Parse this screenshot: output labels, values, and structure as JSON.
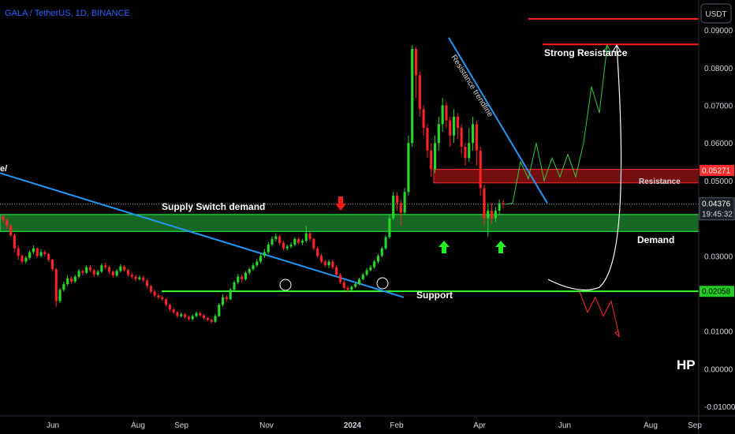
{
  "chart_data": {
    "type": "candlestick",
    "title": "GALA / TetherUS, 1D, BINANCE",
    "currency": "USDT",
    "ylim": [
      -0.0125,
      0.098
    ],
    "y_ticks": [
      "0.09000",
      "0.08000",
      "0.07000",
      "0.06000",
      "0.05000",
      "0.03000",
      "0.01000",
      "0.00000",
      "-0.01000"
    ],
    "x_ticks": [
      "Jun",
      "Aug",
      "Sep",
      "Nov",
      "2024",
      "Feb",
      "Apr",
      "Jun",
      "Aug",
      "Sep"
    ],
    "price_now": "0.04376",
    "countdown": "19:45:32",
    "resistance_price": "0.05271",
    "support_price": "0.02058",
    "zones": {
      "demand": {
        "from": 0.0365,
        "to": 0.041,
        "label": "Demand",
        "label2": "Supply Switch demand"
      },
      "resistance": {
        "from": 0.0494,
        "to": 0.053,
        "label": "Resistance"
      },
      "support": {
        "level": 0.0206,
        "label": "Support"
      },
      "strong_resistance": {
        "levels": [
          0.093,
          0.0862
        ],
        "label": "Strong Resistance"
      }
    },
    "trendline_label": "Resistance trendline",
    "left_label": "e/",
    "signature": "HP",
    "candles": [
      [
        0.0405,
        0.0395,
        0.041,
        0.0388
      ],
      [
        0.0395,
        0.038,
        0.04,
        0.0372
      ],
      [
        0.038,
        0.0355,
        0.0385,
        0.035
      ],
      [
        0.0355,
        0.032,
        0.036,
        0.031
      ],
      [
        0.032,
        0.03,
        0.0328,
        0.029
      ],
      [
        0.03,
        0.0285,
        0.0305,
        0.0278
      ],
      [
        0.0285,
        0.0295,
        0.03,
        0.028
      ],
      [
        0.0295,
        0.031,
        0.0315,
        0.029
      ],
      [
        0.031,
        0.032,
        0.0328,
        0.0305
      ],
      [
        0.032,
        0.03,
        0.0322,
        0.0295
      ],
      [
        0.03,
        0.031,
        0.0318,
        0.0296
      ],
      [
        0.031,
        0.0305,
        0.0315,
        0.0298
      ],
      [
        0.0305,
        0.029,
        0.0308,
        0.0284
      ],
      [
        0.029,
        0.0265,
        0.0292,
        0.026
      ],
      [
        0.0265,
        0.018,
        0.0268,
        0.0165
      ],
      [
        0.018,
        0.021,
        0.0215,
        0.0175
      ],
      [
        0.021,
        0.0225,
        0.0232,
        0.0205
      ],
      [
        0.0225,
        0.024,
        0.0248,
        0.022
      ],
      [
        0.024,
        0.0232,
        0.0246,
        0.0226
      ],
      [
        0.0232,
        0.0245,
        0.025,
        0.0228
      ],
      [
        0.0245,
        0.026,
        0.0265,
        0.024
      ],
      [
        0.026,
        0.0255,
        0.0264,
        0.0248
      ],
      [
        0.0255,
        0.027,
        0.0275,
        0.0252
      ],
      [
        0.027,
        0.0262,
        0.0276,
        0.0256
      ],
      [
        0.0262,
        0.025,
        0.0265,
        0.0244
      ],
      [
        0.025,
        0.0258,
        0.0263,
        0.0245
      ],
      [
        0.0258,
        0.0275,
        0.028,
        0.0254
      ],
      [
        0.0275,
        0.027,
        0.0282,
        0.0264
      ],
      [
        0.027,
        0.0258,
        0.0274,
        0.0252
      ],
      [
        0.0258,
        0.0248,
        0.0262,
        0.0242
      ],
      [
        0.0248,
        0.026,
        0.0265,
        0.0244
      ],
      [
        0.026,
        0.0272,
        0.0278,
        0.0256
      ],
      [
        0.0272,
        0.0262,
        0.0276,
        0.0258
      ],
      [
        0.0262,
        0.025,
        0.0266,
        0.0245
      ],
      [
        0.025,
        0.0245,
        0.0255,
        0.024
      ],
      [
        0.0245,
        0.0238,
        0.025,
        0.0232
      ],
      [
        0.0238,
        0.0243,
        0.0248,
        0.0234
      ],
      [
        0.0243,
        0.0235,
        0.0247,
        0.023
      ],
      [
        0.0235,
        0.022,
        0.0238,
        0.0215
      ],
      [
        0.022,
        0.0205,
        0.0223,
        0.02
      ],
      [
        0.0205,
        0.0195,
        0.021,
        0.019
      ],
      [
        0.0195,
        0.019,
        0.02,
        0.0185
      ],
      [
        0.019,
        0.0185,
        0.0195,
        0.018
      ],
      [
        0.0185,
        0.017,
        0.0188,
        0.0165
      ],
      [
        0.017,
        0.0158,
        0.0173,
        0.0152
      ],
      [
        0.0158,
        0.015,
        0.0162,
        0.0145
      ],
      [
        0.015,
        0.014,
        0.0154,
        0.0135
      ],
      [
        0.014,
        0.0145,
        0.015,
        0.0136
      ],
      [
        0.0145,
        0.0138,
        0.0148,
        0.0133
      ],
      [
        0.0138,
        0.0132,
        0.0142,
        0.0128
      ],
      [
        0.0132,
        0.014,
        0.0145,
        0.0128
      ],
      [
        0.014,
        0.0148,
        0.0152,
        0.0136
      ],
      [
        0.0148,
        0.0142,
        0.0152,
        0.0138
      ],
      [
        0.0142,
        0.0135,
        0.0146,
        0.013
      ],
      [
        0.0135,
        0.013,
        0.0138,
        0.0126
      ],
      [
        0.013,
        0.0125,
        0.0134,
        0.012
      ],
      [
        0.0125,
        0.014,
        0.0146,
        0.0122
      ],
      [
        0.014,
        0.017,
        0.0175,
        0.0138
      ],
      [
        0.017,
        0.019,
        0.0198,
        0.0165
      ],
      [
        0.019,
        0.0185,
        0.0196,
        0.0178
      ],
      [
        0.0185,
        0.021,
        0.0215,
        0.0182
      ],
      [
        0.021,
        0.023,
        0.0235,
        0.0205
      ],
      [
        0.023,
        0.0245,
        0.0252,
        0.0225
      ],
      [
        0.0245,
        0.0238,
        0.025,
        0.023
      ],
      [
        0.0238,
        0.0255,
        0.026,
        0.0234
      ],
      [
        0.0255,
        0.0265,
        0.027,
        0.025
      ],
      [
        0.0265,
        0.0275,
        0.0282,
        0.026
      ],
      [
        0.0275,
        0.0285,
        0.0292,
        0.027
      ],
      [
        0.0285,
        0.03,
        0.0308,
        0.028
      ],
      [
        0.03,
        0.031,
        0.0318,
        0.0295
      ],
      [
        0.031,
        0.033,
        0.0336,
        0.0305
      ],
      [
        0.033,
        0.0345,
        0.0352,
        0.0325
      ],
      [
        0.0345,
        0.0352,
        0.036,
        0.0338
      ],
      [
        0.0352,
        0.0335,
        0.0356,
        0.0328
      ],
      [
        0.0335,
        0.032,
        0.034,
        0.0315
      ],
      [
        0.032,
        0.0325,
        0.033,
        0.0314
      ],
      [
        0.0325,
        0.033,
        0.0336,
        0.032
      ],
      [
        0.033,
        0.0345,
        0.035,
        0.0325
      ],
      [
        0.0345,
        0.0335,
        0.035,
        0.033
      ],
      [
        0.0335,
        0.034,
        0.0345,
        0.0328
      ],
      [
        0.034,
        0.036,
        0.038,
        0.0335
      ],
      [
        0.036,
        0.0345,
        0.0365,
        0.0338
      ],
      [
        0.0345,
        0.032,
        0.0348,
        0.0315
      ],
      [
        0.032,
        0.03,
        0.0325,
        0.0295
      ],
      [
        0.03,
        0.0285,
        0.0305,
        0.028
      ],
      [
        0.0285,
        0.0275,
        0.029,
        0.027
      ],
      [
        0.0275,
        0.0285,
        0.029,
        0.0268
      ],
      [
        0.0285,
        0.027,
        0.029,
        0.0265
      ],
      [
        0.027,
        0.025,
        0.0275,
        0.0245
      ],
      [
        0.025,
        0.023,
        0.0255,
        0.0225
      ],
      [
        0.023,
        0.0215,
        0.0235,
        0.021
      ],
      [
        0.0215,
        0.021,
        0.022,
        0.0205
      ],
      [
        0.021,
        0.0218,
        0.0222,
        0.0206
      ],
      [
        0.0218,
        0.0225,
        0.023,
        0.0214
      ],
      [
        0.0225,
        0.0238,
        0.0242,
        0.0222
      ],
      [
        0.0238,
        0.025,
        0.0255,
        0.0235
      ],
      [
        0.025,
        0.0262,
        0.0268,
        0.0246
      ],
      [
        0.0262,
        0.027,
        0.0276,
        0.0258
      ],
      [
        0.027,
        0.0285,
        0.029,
        0.0266
      ],
      [
        0.0285,
        0.03,
        0.0305,
        0.028
      ],
      [
        0.03,
        0.032,
        0.0325,
        0.0296
      ],
      [
        0.032,
        0.035,
        0.0355,
        0.0316
      ],
      [
        0.035,
        0.04,
        0.041,
        0.0345
      ],
      [
        0.04,
        0.046,
        0.047,
        0.0395
      ],
      [
        0.046,
        0.044,
        0.047,
        0.042
      ],
      [
        0.044,
        0.0415,
        0.045,
        0.038
      ],
      [
        0.0415,
        0.047,
        0.048,
        0.041
      ],
      [
        0.047,
        0.06,
        0.062,
        0.046
      ],
      [
        0.06,
        0.085,
        0.086,
        0.059
      ],
      [
        0.085,
        0.078,
        0.0855,
        0.072
      ],
      [
        0.078,
        0.069,
        0.079,
        0.067
      ],
      [
        0.069,
        0.064,
        0.07,
        0.062
      ],
      [
        0.064,
        0.058,
        0.065,
        0.056
      ],
      [
        0.058,
        0.053,
        0.06,
        0.051
      ],
      [
        0.053,
        0.06,
        0.062,
        0.052
      ],
      [
        0.06,
        0.065,
        0.067,
        0.058
      ],
      [
        0.065,
        0.07,
        0.072,
        0.063
      ],
      [
        0.07,
        0.066,
        0.071,
        0.064
      ],
      [
        0.066,
        0.062,
        0.067,
        0.059
      ],
      [
        0.062,
        0.067,
        0.069,
        0.06
      ],
      [
        0.067,
        0.064,
        0.068,
        0.061
      ],
      [
        0.064,
        0.059,
        0.065,
        0.057
      ],
      [
        0.059,
        0.056,
        0.06,
        0.054
      ],
      [
        0.056,
        0.06,
        0.064,
        0.055
      ],
      [
        0.06,
        0.065,
        0.067,
        0.058
      ],
      [
        0.065,
        0.058,
        0.066,
        0.054
      ],
      [
        0.058,
        0.048,
        0.059,
        0.046
      ],
      [
        0.048,
        0.04,
        0.049,
        0.038
      ],
      [
        0.04,
        0.042,
        0.044,
        0.035
      ],
      [
        0.042,
        0.04,
        0.044,
        0.0385
      ],
      [
        0.04,
        0.042,
        0.043,
        0.039
      ],
      [
        0.042,
        0.044,
        0.045,
        0.041
      ],
      [
        0.044,
        0.0437,
        0.0448,
        0.0425
      ]
    ],
    "projection_green": [
      [
        0.0437,
        0.044
      ],
      [
        0.044,
        0.055
      ],
      [
        0.055,
        0.0505
      ],
      [
        0.0505,
        0.06
      ],
      [
        0.06,
        0.05
      ],
      [
        0.05,
        0.056
      ],
      [
        0.056,
        0.051
      ],
      [
        0.051,
        0.057
      ],
      [
        0.057,
        0.051
      ],
      [
        0.051,
        0.06
      ],
      [
        0.06,
        0.075
      ],
      [
        0.075,
        0.068
      ],
      [
        0.068,
        0.086
      ]
    ],
    "projection_red": [
      [
        0.0205,
        0.015
      ],
      [
        0.015,
        0.019
      ],
      [
        0.019,
        0.014
      ],
      [
        0.014,
        0.018
      ],
      [
        0.018,
        0.009
      ]
    ]
  }
}
